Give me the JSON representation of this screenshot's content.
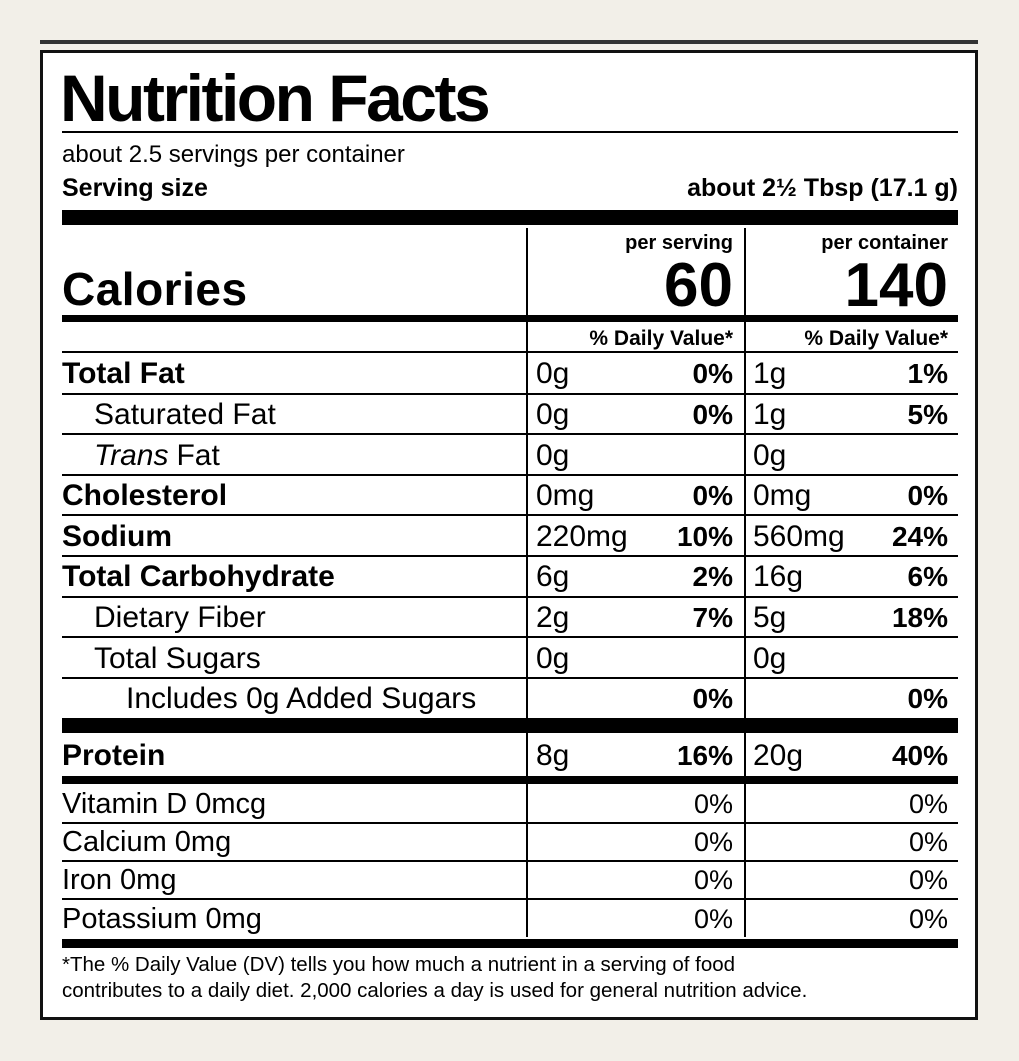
{
  "header": {
    "title": "Nutrition Facts",
    "servings": "about 2.5 servings per container",
    "serving_size_label": "Serving size",
    "serving_size": "about 2½ Tbsp (17.1 g)"
  },
  "calories_label": "Calories",
  "columns": [
    {
      "heading": "per serving",
      "calories": "60",
      "dv_heading": "% Daily Value*"
    },
    {
      "heading": "per container",
      "calories": "140",
      "dv_heading": "% Daily Value*"
    }
  ],
  "nutrients": [
    {
      "name": "Total Fat",
      "values": [
        {
          "amount": "0g",
          "dv": "0%"
        },
        {
          "amount": "1g",
          "dv": "1%"
        }
      ],
      "sub": [
        {
          "name": "Saturated Fat",
          "values": [
            {
              "amount": "0g",
              "dv": "0%"
            },
            {
              "amount": "1g",
              "dv": "5%"
            }
          ]
        },
        {
          "name_italic": "Trans",
          "name": "Fat",
          "values": [
            {
              "amount": "0g"
            },
            {
              "amount": "0g"
            }
          ]
        }
      ]
    },
    {
      "name": "Cholesterol",
      "values": [
        {
          "amount": "0mg",
          "dv": "0%"
        },
        {
          "amount": "0mg",
          "dv": "0%"
        }
      ]
    },
    {
      "name": "Sodium",
      "values": [
        {
          "amount": "220mg",
          "dv": "10%"
        },
        {
          "amount": "560mg",
          "dv": "24%"
        }
      ]
    },
    {
      "name": "Total Carbohydrate",
      "values": [
        {
          "amount": "6g",
          "dv": "2%"
        },
        {
          "amount": "16g",
          "dv": "6%"
        }
      ],
      "sub": [
        {
          "name": "Dietary Fiber",
          "values": [
            {
              "amount": "2g",
              "dv": "7%"
            },
            {
              "amount": "5g",
              "dv": "18%"
            }
          ]
        },
        {
          "name": "Total Sugars",
          "values": [
            {
              "amount": "0g"
            },
            {
              "amount": "0g"
            }
          ],
          "sub": [
            {
              "name": "Includes 0g Added Sugars",
              "values": [
                {
                  "dv": "0%"
                },
                {
                  "dv": "0%"
                }
              ]
            }
          ]
        }
      ]
    }
  ],
  "protein": {
    "name": "Protein",
    "values": [
      {
        "amount": "8g",
        "dv": "16%"
      },
      {
        "amount": "20g",
        "dv": "40%"
      }
    ]
  },
  "minerals": [
    {
      "name": "Vitamin D 0mcg",
      "values": [
        "0%",
        "0%"
      ]
    },
    {
      "name": "Calcium 0mg",
      "values": [
        "0%",
        "0%"
      ]
    },
    {
      "name": "Iron 0mg",
      "values": [
        "0%",
        "0%"
      ]
    },
    {
      "name": "Potassium 0mg",
      "values": [
        "0%",
        "0%"
      ]
    }
  ],
  "footnote": [
    "*The % Daily Value (DV) tells you how much a nutrient in a serving of food",
    "contributes to a daily diet. 2,000 calories a day is used for general nutrition advice."
  ]
}
